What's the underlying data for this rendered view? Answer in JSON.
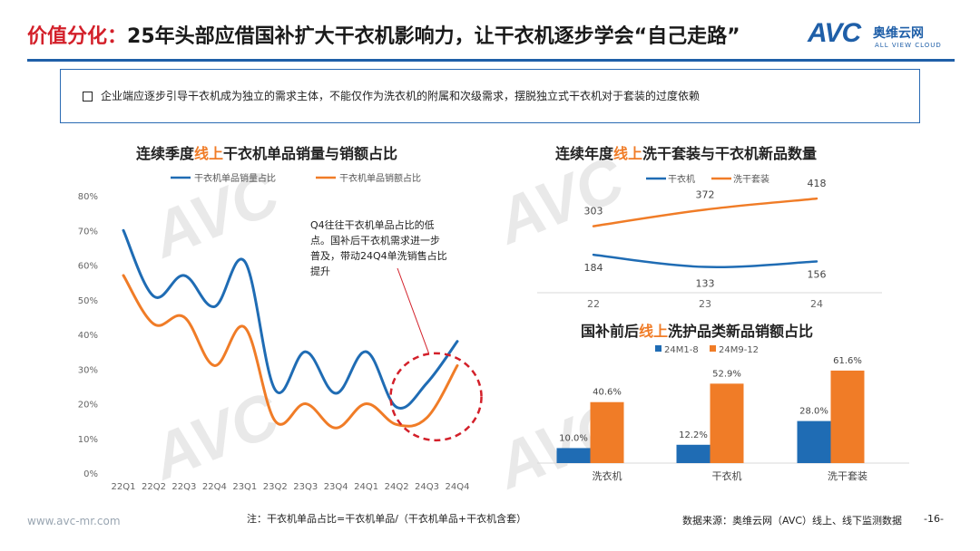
{
  "header": {
    "title_prefix": "价值分化：",
    "title_main": "25年头部应借国补扩大干衣机影响力，让干衣机逐步学会“自己走路”",
    "logo_text": "AVC",
    "logo_cn": "奥维云网",
    "logo_en": "ALL VIEW CLOUD"
  },
  "note": {
    "text": "企业端应逐步引导干衣机成为独立的需求主体，不能仅作为洗衣机的附属和次级需求，摆脱独立式干衣机对于套装的过度依赖"
  },
  "colors": {
    "blue": "#1f6cb4",
    "orange": "#f07c27",
    "red": "#d3202a",
    "grid": "#e6e6e6"
  },
  "chart_data": [
    {
      "type": "line",
      "title_pre": "连续季度",
      "title_hl": "线上",
      "title_post": "干衣机单品销量与销额占比",
      "categories": [
        "22Q1",
        "22Q2",
        "22Q3",
        "22Q4",
        "23Q1",
        "23Q2",
        "23Q3",
        "23Q4",
        "24Q1",
        "24Q2",
        "24Q3",
        "24Q4"
      ],
      "series": [
        {
          "name": "干衣机单品销量占比",
          "values": [
            70,
            51,
            57,
            48,
            61,
            24,
            35,
            23,
            35,
            19,
            26,
            38
          ]
        },
        {
          "name": "干衣机单品销额占比",
          "values": [
            57,
            43,
            45,
            31,
            42,
            15,
            20,
            13,
            20,
            14,
            16,
            31
          ]
        }
      ],
      "ylim": [
        0,
        80
      ],
      "yticks": [
        "0%",
        "10%",
        "20%",
        "30%",
        "40%",
        "50%",
        "60%",
        "70%",
        "80%"
      ],
      "annotation": [
        "Q4往往干衣机单品占比的低",
        "点。国补后干衣机需求进一步",
        "普及，带动24Q4单洗销售占比",
        "提升"
      ],
      "legend": "top"
    },
    {
      "type": "line",
      "title_pre": "连续年度",
      "title_hl": "线上",
      "title_post": "洗干套装与干衣机新品数量",
      "categories": [
        "22",
        "23",
        "24"
      ],
      "series": [
        {
          "name": "干衣机",
          "values": [
            184,
            133,
            156
          ]
        },
        {
          "name": "洗干套装",
          "values": [
            303,
            372,
            418
          ]
        }
      ],
      "labels": [
        [
          "184",
          "133",
          "156"
        ],
        [
          "303",
          "372",
          "418"
        ]
      ],
      "ylim": [
        0,
        500
      ],
      "legend": "top"
    },
    {
      "type": "bar",
      "title_pre": "国补前后",
      "title_hl": "线上",
      "title_post": "洗护品类新品销额占比",
      "categories": [
        "洗衣机",
        "干衣机",
        "洗干套装"
      ],
      "series": [
        {
          "name": "24M1-8",
          "values": [
            10.0,
            12.2,
            28.0
          ]
        },
        {
          "name": "24M9-12",
          "values": [
            40.6,
            52.9,
            61.6
          ]
        }
      ],
      "labels": [
        [
          "10.0%",
          "12.2%",
          "28.0%"
        ],
        [
          "40.6%",
          "52.9%",
          "61.6%"
        ]
      ],
      "ylim": [
        0,
        70
      ],
      "legend": "top-left"
    }
  ],
  "footer": {
    "url": "www.avc-mr.com",
    "note": "注：干衣机单品占比=干衣机单品/（干衣机单品+干衣机含套）",
    "source": "数据来源：奥维云网（AVC）线上、线下监测数据",
    "page": "-16-"
  }
}
